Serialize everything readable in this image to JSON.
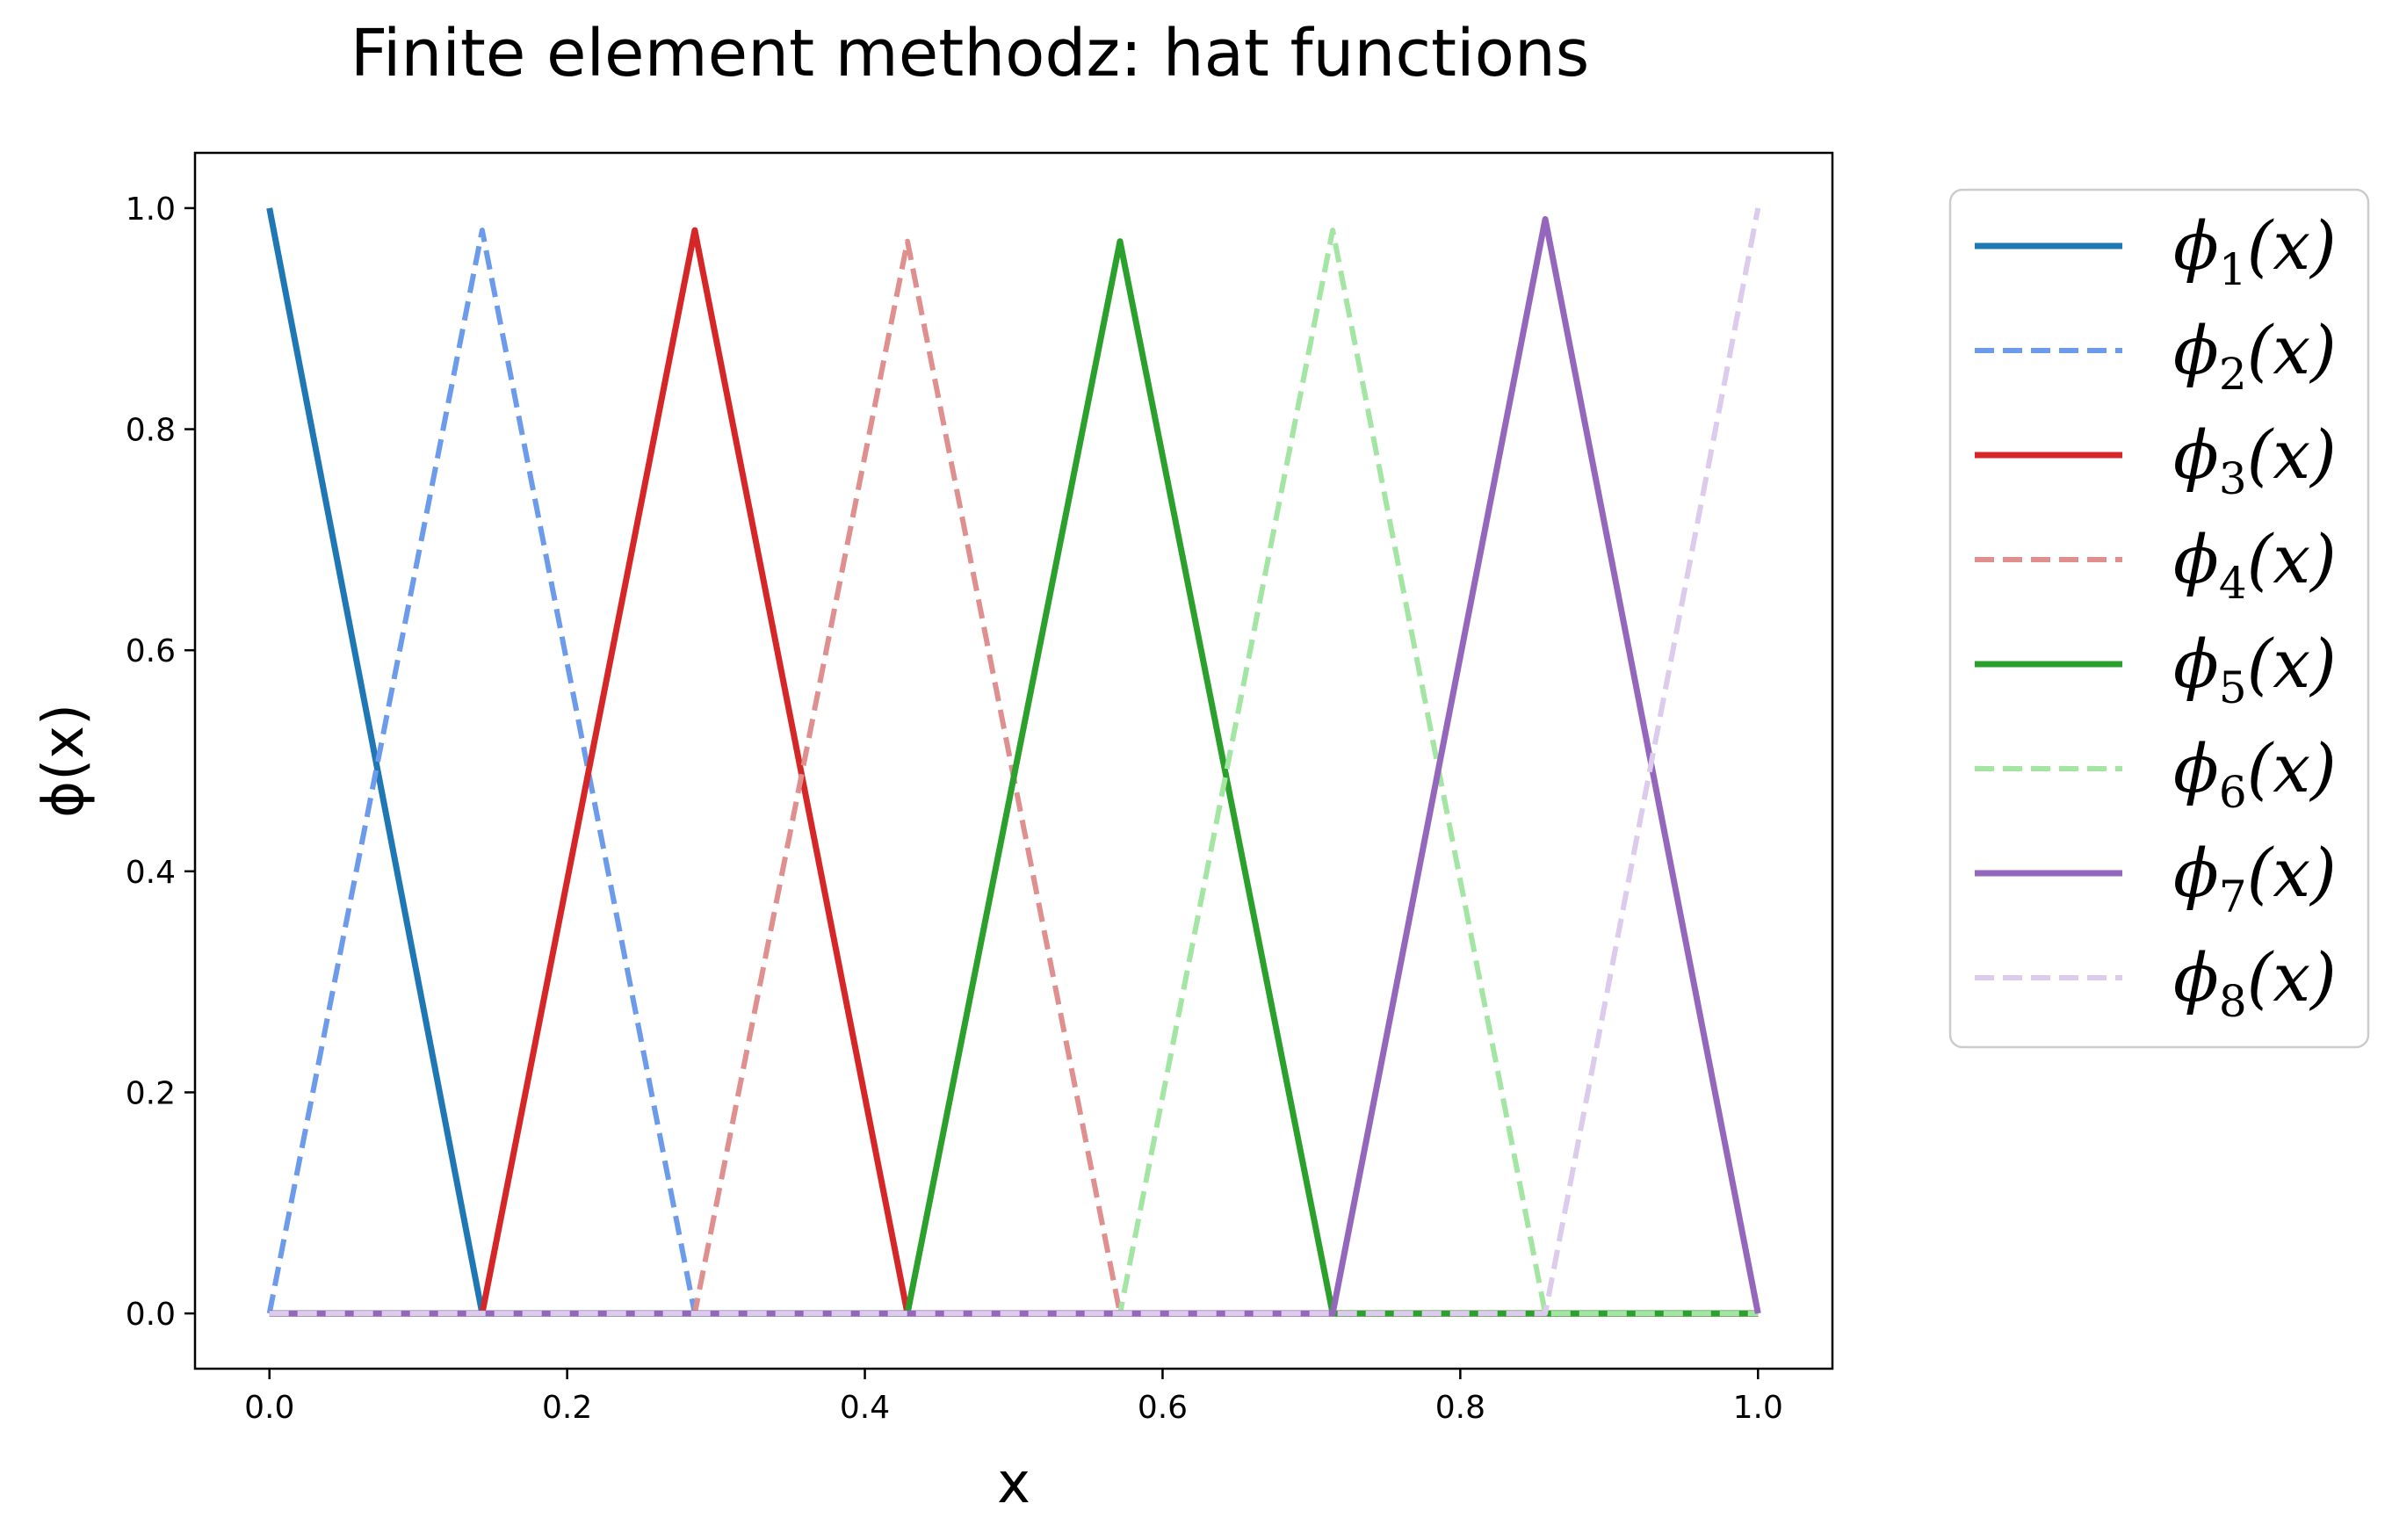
{
  "chart_data": {
    "type": "line",
    "title": "Finite element methodz: hat functions",
    "xlabel": "x",
    "ylabel": "ϕ(x)",
    "xlim": [
      -0.05,
      1.05
    ],
    "ylim": [
      -0.05,
      1.05
    ],
    "xticks": [
      "0.0",
      "0.2",
      "0.4",
      "0.6",
      "0.8",
      "1.0"
    ],
    "yticks": [
      "0.0",
      "0.2",
      "0.4",
      "0.6",
      "0.8",
      "1.0"
    ],
    "grid": false,
    "legend_position": "outside-right",
    "series": [
      {
        "name": "ϕ",
        "subscript": "1",
        "name_suffix": "(x)",
        "color": "#1f77b4",
        "style": "solid",
        "x": [
          0.0,
          0.1429,
          1.0
        ],
        "y": [
          1.0,
          0.0,
          0.0
        ]
      },
      {
        "name": "ϕ",
        "subscript": "2",
        "name_suffix": "(x)",
        "color": "#6b9bea",
        "style": "dashed",
        "x": [
          0.0,
          0.1429,
          0.2857,
          1.0
        ],
        "y": [
          0.0,
          0.98,
          0.0,
          0.0
        ]
      },
      {
        "name": "ϕ",
        "subscript": "3",
        "name_suffix": "(x)",
        "color": "#d62728",
        "style": "solid",
        "x": [
          0.0,
          0.1429,
          0.2857,
          0.4286,
          1.0
        ],
        "y": [
          0.0,
          0.0,
          0.98,
          0.0,
          0.0
        ]
      },
      {
        "name": "ϕ",
        "subscript": "4",
        "name_suffix": "(x)",
        "color": "#e08f8f",
        "style": "dashed",
        "x": [
          0.0,
          0.2857,
          0.4286,
          0.5714,
          1.0
        ],
        "y": [
          0.0,
          0.0,
          0.97,
          0.0,
          0.0
        ]
      },
      {
        "name": "ϕ",
        "subscript": "5",
        "name_suffix": "(x)",
        "color": "#2ca02c",
        "style": "solid",
        "x": [
          0.0,
          0.4286,
          0.5714,
          0.7143,
          1.0
        ],
        "y": [
          0.0,
          0.0,
          0.97,
          0.0,
          0.0
        ]
      },
      {
        "name": "ϕ",
        "subscript": "6",
        "name_suffix": "(x)",
        "color": "#a3e6a3",
        "style": "dashed",
        "x": [
          0.0,
          0.5714,
          0.7143,
          0.8571,
          1.0
        ],
        "y": [
          0.0,
          0.0,
          0.98,
          0.0,
          0.0
        ]
      },
      {
        "name": "ϕ",
        "subscript": "7",
        "name_suffix": "(x)",
        "color": "#9467bd",
        "style": "solid",
        "x": [
          0.0,
          0.7143,
          0.8571,
          1.0
        ],
        "y": [
          0.0,
          0.0,
          0.99,
          0.0
        ]
      },
      {
        "name": "ϕ",
        "subscript": "8",
        "name_suffix": "(x)",
        "color": "#dccbec",
        "style": "dashed",
        "x": [
          0.0,
          0.8571,
          1.0
        ],
        "y": [
          0.0,
          0.0,
          1.0
        ]
      }
    ]
  }
}
